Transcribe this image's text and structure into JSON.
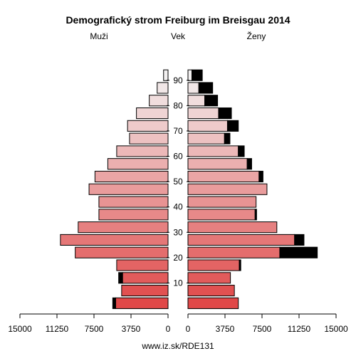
{
  "chart_data": {
    "type": "bar",
    "title": "Demografický strom Freiburg im Breisgau 2014",
    "left_label": "Muži",
    "center_label": "Vek",
    "right_label": "Ženy",
    "footer": "www.iz.sk/RDE131",
    "x_tick_labels": [
      "15000",
      "11250",
      "7500",
      "3750",
      "0",
      "0",
      "3750",
      "7500",
      "11250",
      "15000"
    ],
    "x_ticks_left": [
      15000,
      11250,
      7500,
      3750,
      0
    ],
    "x_ticks_right": [
      0,
      3750,
      7500,
      11250,
      15000
    ],
    "age_tick_labels": [
      "10",
      "20",
      "30",
      "40",
      "50",
      "60",
      "70",
      "80",
      "90"
    ],
    "age_ticks": [
      10,
      20,
      30,
      40,
      50,
      60,
      70,
      80,
      90
    ],
    "xlim": [
      0,
      15000
    ],
    "age_groups": [
      "0-4",
      "5-9",
      "10-14",
      "15-19",
      "20-24",
      "25-29",
      "30-34",
      "35-39",
      "40-44",
      "45-49",
      "50-54",
      "55-59",
      "60-64",
      "65-69",
      "70-74",
      "75-79",
      "80-84",
      "85-89",
      "90+"
    ],
    "age_mid": [
      2,
      7,
      12,
      17,
      22,
      27,
      32,
      37,
      42,
      47,
      52,
      57,
      62,
      67,
      72,
      77,
      82,
      87,
      92
    ],
    "series": [
      {
        "name": "Muži",
        "values": [
          5300,
          4700,
          4600,
          5200,
          9400,
          10900,
          9100,
          7000,
          7000,
          8000,
          7400,
          6100,
          5200,
          3900,
          4100,
          3200,
          1900,
          1100,
          450
        ],
        "black_extra": [
          300,
          0,
          400,
          0,
          0,
          0,
          0,
          0,
          0,
          0,
          0,
          0,
          0,
          0,
          0,
          0,
          0,
          0,
          0
        ]
      },
      {
        "name": "Ženy",
        "values": [
          5100,
          4700,
          4300,
          5200,
          9300,
          10800,
          9000,
          6800,
          6900,
          8000,
          7200,
          6000,
          5100,
          3700,
          4000,
          3100,
          1700,
          1100,
          400
        ],
        "black_extra": [
          0,
          0,
          0,
          150,
          3800,
          950,
          0,
          150,
          0,
          0,
          400,
          450,
          600,
          550,
          1100,
          1300,
          1300,
          1400,
          1050
        ]
      }
    ],
    "colors": {
      "young": "#e04848",
      "old": "#f2f0f0",
      "extra": "#000000"
    }
  }
}
